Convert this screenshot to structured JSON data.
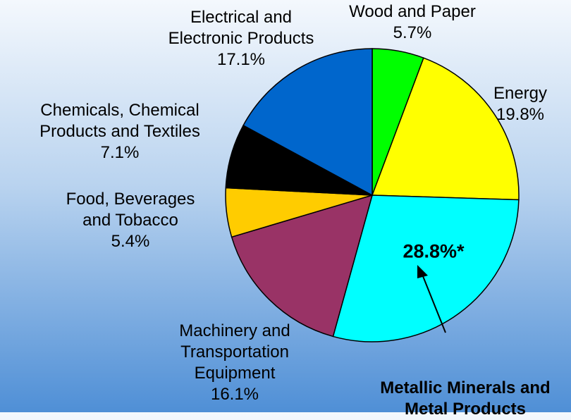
{
  "chart_data": {
    "type": "pie",
    "categories": [
      "Wood and Paper",
      "Energy",
      "Metallic Minerals and Metal Products",
      "Machinery and Transportation Equipment",
      "Food, Beverages and Tobacco",
      "Chemicals, Chemical Products and Textiles",
      "Electrical and Electronic Products"
    ],
    "values": [
      5.7,
      19.8,
      28.8,
      16.1,
      5.4,
      7.1,
      17.1
    ],
    "value_labels": [
      "5.7%",
      "19.8%",
      "28.8%*",
      "16.1%",
      "5.4%",
      "7.1%",
      "17.1%"
    ],
    "colors": [
      "#00ff00",
      "#ffff00",
      "#00ffff",
      "#993366",
      "#ffcc00",
      "#000000",
      "#0066cc"
    ]
  }
}
